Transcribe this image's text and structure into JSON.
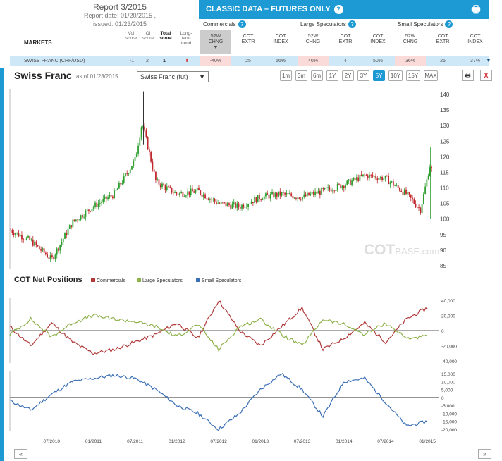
{
  "report": {
    "title": "Report 3/2015",
    "report_date": "Report date: 01/20/2015 ,",
    "issued": "issued: 01/23/2015"
  },
  "banner": {
    "title": "CLASSIC DATA – FUTURES ONLY",
    "help": "?"
  },
  "groups": [
    "Commercials",
    "Large Speculators",
    "Small Speculators"
  ],
  "columns": {
    "chng": [
      "52W",
      "CHNG"
    ],
    "extr": [
      "COT",
      "EXTR"
    ],
    "index": [
      "COT",
      "INDEX"
    ]
  },
  "markets_label": "MARKETS",
  "small_headers": [
    "Vol score",
    "OI score",
    "Total score",
    "Long-term trend"
  ],
  "row": {
    "name": "SWISS FRANC",
    "sub": "(CHF/USD)",
    "vol": "-1",
    "oi": "2",
    "total": "1",
    "comm": [
      "-40%",
      "25",
      "56%"
    ],
    "large": [
      "40%",
      "4",
      "50%"
    ],
    "small": [
      "36%",
      "26",
      "37%"
    ]
  },
  "chart": {
    "title": "Swiss Franc",
    "asof": "as of 01/23/2015",
    "select": "Swiss Franc (fut)",
    "ranges": [
      "1m",
      "3m",
      "6m",
      "1Y",
      "2Y",
      "3Y",
      "5Y",
      "10Y",
      "15Y",
      "MAX"
    ],
    "active": "5Y"
  },
  "watermark": {
    "main": "COT",
    "sub": "BASE.com"
  },
  "cot": {
    "title": "COT Net Positions",
    "legend": [
      "Commercials",
      "Large Speculators",
      "Small Speculators"
    ]
  },
  "colors": {
    "accent": "#1d9ad3",
    "up": "#2e9e2e",
    "down": "#c0272d",
    "comm": "#b03a3a",
    "large": "#8fb24b",
    "small": "#3a6fb5"
  },
  "chart_data": [
    {
      "type": "candlestick",
      "title": "Swiss Franc",
      "ylim": [
        85,
        140
      ],
      "yticks": [
        85,
        90,
        95,
        100,
        105,
        110,
        115,
        120,
        125,
        130,
        135,
        140
      ],
      "x": [
        "2010-01",
        "2010-04",
        "2010-07",
        "2010-10",
        "2011-01",
        "2011-04",
        "2011-07",
        "2011-08",
        "2011-10",
        "2012-01",
        "2012-04",
        "2012-07",
        "2012-10",
        "2013-01",
        "2013-04",
        "2013-07",
        "2013-10",
        "2014-01",
        "2014-04",
        "2014-07",
        "2014-10",
        "2014-12",
        "2015-01-15",
        "2015-01-23"
      ],
      "close": [
        96.5,
        93,
        87,
        99,
        104,
        108,
        119,
        131,
        112,
        108,
        109,
        105,
        104,
        107,
        108,
        107,
        109,
        111,
        114,
        113,
        108,
        103,
        118,
        114
      ]
    },
    {
      "type": "line",
      "title": "COT Net Positions",
      "ylim": [
        -40000,
        40000
      ],
      "yticks": [
        -40000,
        -20000,
        0,
        20000,
        40000
      ],
      "x": [
        "2010-01",
        "2010-04",
        "2010-07",
        "2010-10",
        "2011-01",
        "2011-04",
        "2011-07",
        "2011-10",
        "2012-01",
        "2012-04",
        "2012-07",
        "2012-10",
        "2013-01",
        "2013-04",
        "2013-07",
        "2013-10",
        "2014-01",
        "2014-04",
        "2014-07",
        "2014-10",
        "2015-01"
      ],
      "series": [
        {
          "name": "Commercials",
          "values": [
            5000,
            -20000,
            10000,
            -15000,
            -30000,
            -25000,
            -15000,
            -5000,
            10000,
            -10000,
            40000,
            0,
            -20000,
            5000,
            30000,
            -25000,
            -10000,
            10000,
            -15000,
            15000,
            30000
          ]
        },
        {
          "name": "Large Speculators",
          "values": [
            -5000,
            15000,
            -8000,
            10000,
            20000,
            15000,
            12000,
            5000,
            -8000,
            8000,
            -25000,
            5000,
            15000,
            -5000,
            -20000,
            15000,
            8000,
            -5000,
            10000,
            -10000,
            -8000
          ]
        }
      ]
    },
    {
      "type": "line",
      "ylim": [
        -20000,
        15000
      ],
      "yticks": [
        -20000,
        -15000,
        -10000,
        -5000,
        0,
        5000,
        10000,
        15000
      ],
      "x": [
        "2010-01",
        "2010-04",
        "2010-07",
        "2010-10",
        "2011-01",
        "2011-04",
        "2011-07",
        "2011-10",
        "2012-01",
        "2012-04",
        "2012-07",
        "2012-10",
        "2013-01",
        "2013-04",
        "2013-07",
        "2013-10",
        "2014-01",
        "2014-04",
        "2014-07",
        "2014-10",
        "2015-01"
      ],
      "xticks": [
        "07/2010",
        "01/2011",
        "07/2011",
        "01/2012",
        "07/2012",
        "01/2013",
        "07/2013",
        "01/2014",
        "07/2014",
        "01/2015"
      ],
      "series": [
        {
          "name": "Small Speculators",
          "values": [
            -2000,
            -8000,
            2000,
            10000,
            12000,
            14000,
            12000,
            5000,
            -5000,
            -10000,
            -20000,
            -10000,
            5000,
            15000,
            5000,
            -12000,
            10000,
            12000,
            -3000,
            -18000,
            -15000
          ]
        }
      ]
    }
  ]
}
